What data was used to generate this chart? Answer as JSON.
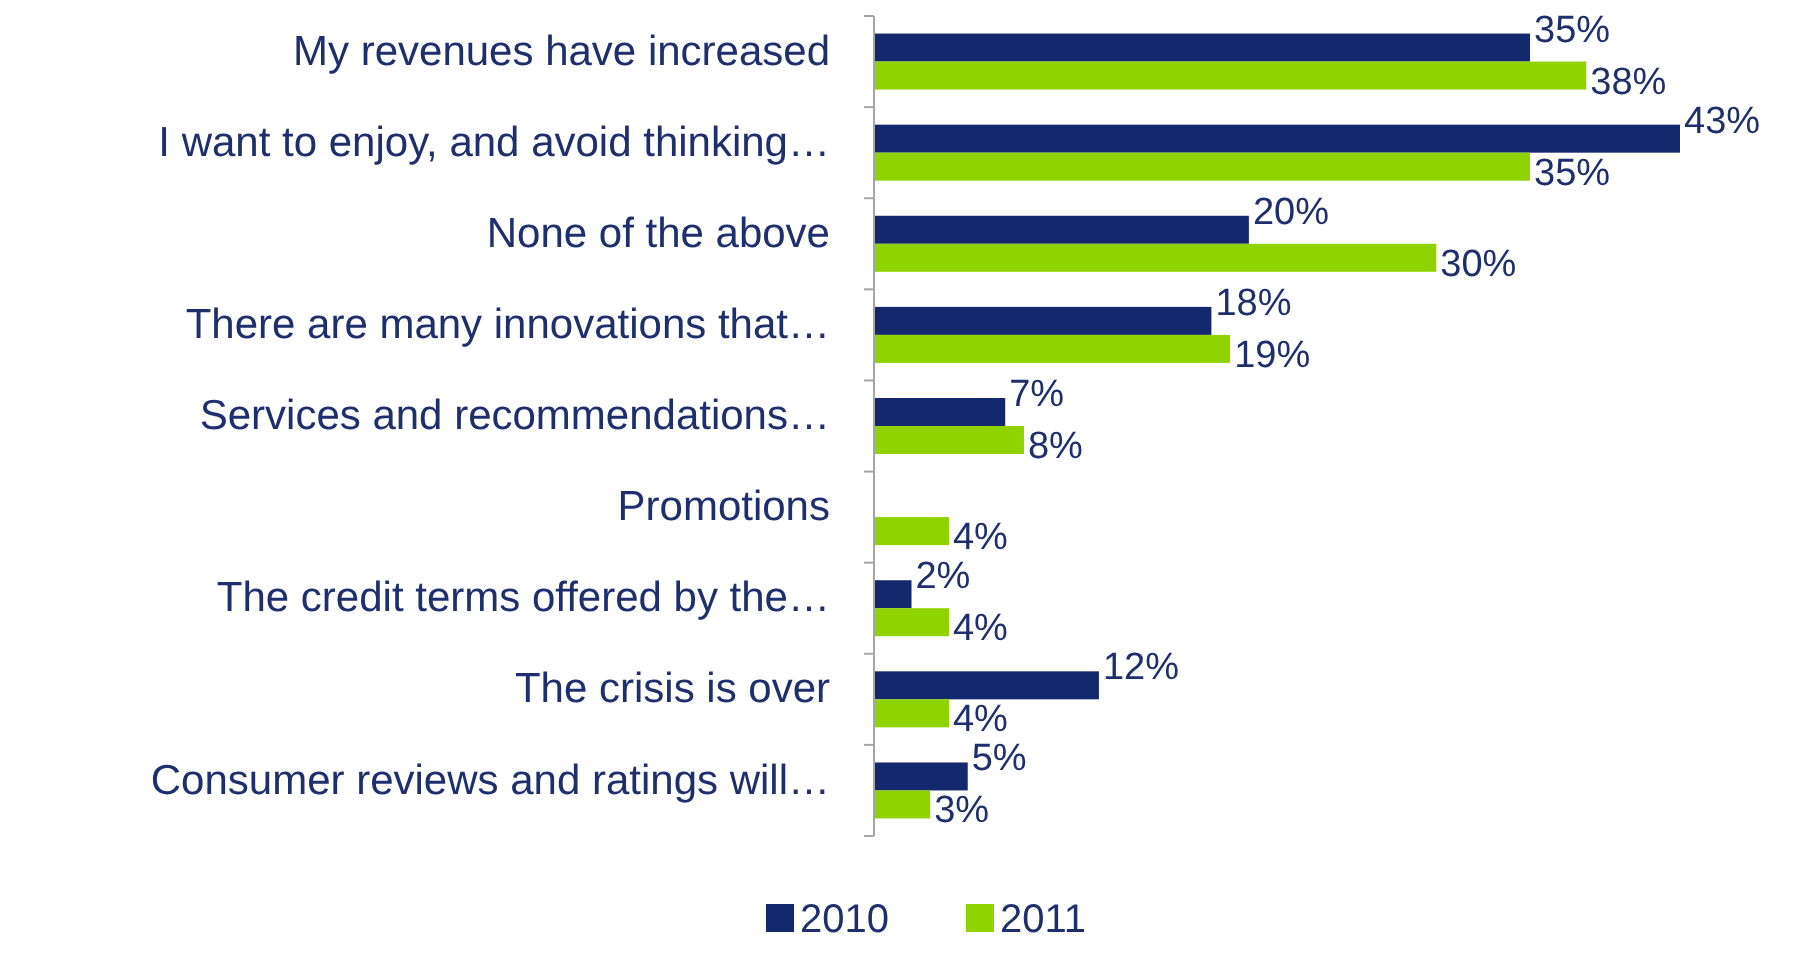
{
  "chart_data": {
    "type": "bar",
    "orientation": "horizontal",
    "categories": [
      "My revenues have increased",
      "I want to enjoy, and avoid thinking…",
      "None of the above",
      "There are many innovations that…",
      "Services and recommendations…",
      "Promotions",
      "The credit terms offered by the…",
      "The crisis is over",
      "Consumer reviews and ratings will…"
    ],
    "series": [
      {
        "name": "2010",
        "color": "#14286e",
        "values": [
          35,
          43,
          20,
          18,
          7,
          null,
          2,
          12,
          5
        ],
        "value_labels": [
          "35%",
          "43%",
          "20%",
          "18%",
          "7%",
          null,
          "2%",
          "12%",
          "5%"
        ]
      },
      {
        "name": "2011",
        "color": "#8fd400",
        "values": [
          38,
          35,
          30,
          19,
          8,
          4,
          4,
          4,
          3
        ],
        "value_labels": [
          "38%",
          "35%",
          "30%",
          "19%",
          "8%",
          "4%",
          "4%",
          "4%",
          "3%"
        ]
      }
    ],
    "legend": "bottom",
    "grid": false
  }
}
